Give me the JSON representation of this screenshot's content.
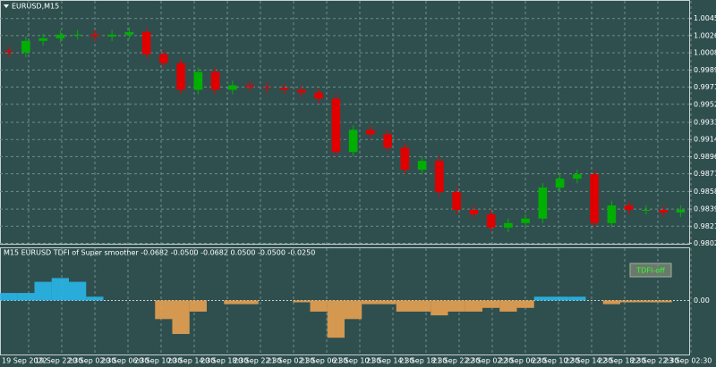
{
  "chart_data": [
    {
      "type": "candlestick",
      "title": "EURUSD,M15",
      "up_color": "#00b000",
      "down_color": "#e00000",
      "open": [
        1.001,
        1.00084,
        1.00208,
        1.00237,
        1.00276,
        1.00276,
        1.00256,
        1.00276,
        1.00304,
        1.00065,
        0.99969,
        0.99681,
        0.99873,
        0.99681,
        0.99729,
        0.9971,
        0.997,
        0.99681,
        0.99652,
        0.99585,
        0.9901,
        0.99249,
        0.99202,
        0.99058,
        0.98818,
        0.98914,
        0.98578,
        0.98386,
        0.98338,
        0.98195,
        0.98243,
        0.98291,
        0.98626,
        0.98722,
        0.9877,
        0.98243,
        0.98434,
        0.98386,
        0.98386,
        0.98358
      ],
      "high": [
        1.0015,
        1.00258,
        1.00287,
        1.00326,
        1.00326,
        1.00326,
        1.00326,
        1.00354,
        1.00354,
        1.00115,
        1.00019,
        0.99923,
        0.99923,
        0.99779,
        0.99779,
        0.9976,
        0.9975,
        0.99731,
        0.99702,
        0.99635,
        0.99299,
        0.99299,
        0.99252,
        0.99108,
        0.98964,
        0.98964,
        0.98628,
        0.98436,
        0.98388,
        0.98293,
        0.98341,
        0.98676,
        0.98772,
        0.9882,
        0.9882,
        0.98484,
        0.98484,
        0.98436,
        0.98436,
        0.98436
      ],
      "low": [
        1.00034,
        1.00034,
        1.00158,
        1.00187,
        1.00226,
        1.00206,
        1.00206,
        1.00226,
        1.00015,
        0.99919,
        0.99631,
        0.99631,
        0.99631,
        0.99631,
        0.9966,
        0.9965,
        0.99631,
        0.99602,
        0.99535,
        0.9896,
        0.9896,
        0.99152,
        0.99008,
        0.98768,
        0.98768,
        0.98528,
        0.98336,
        0.98288,
        0.98145,
        0.98145,
        0.98193,
        0.98241,
        0.98576,
        0.98672,
        0.98193,
        0.98193,
        0.98336,
        0.98336,
        0.98308,
        0.98308
      ],
      "close": [
        1.00084,
        1.00208,
        1.00237,
        1.00276,
        1.00276,
        1.00256,
        1.00276,
        1.00304,
        1.00065,
        0.99969,
        0.99681,
        0.99873,
        0.99681,
        0.99729,
        0.9971,
        0.997,
        0.99681,
        0.99652,
        0.99585,
        0.9901,
        0.99249,
        0.99202,
        0.99058,
        0.98818,
        0.98914,
        0.98578,
        0.98386,
        0.98338,
        0.98195,
        0.98243,
        0.98291,
        0.98626,
        0.98722,
        0.9877,
        0.98243,
        0.98434,
        0.98386,
        0.98386,
        0.98358,
        0.98386
      ],
      "ylim": [
        0.9802,
        1.0064
      ],
      "yticks": [
        {
          "value": 1.0045,
          "label": "1.00450"
        },
        {
          "value": 1.00265,
          "label": "1.00265"
        },
        {
          "value": 1.0008,
          "label": "1.00080"
        },
        {
          "value": 0.99895,
          "label": "0.99895"
        },
        {
          "value": 0.9971,
          "label": "0.99710"
        },
        {
          "value": 0.99525,
          "label": "0.99525"
        },
        {
          "value": 0.9933,
          "label": "0.99330"
        },
        {
          "value": 0.99145,
          "label": "0.99145"
        },
        {
          "value": 0.9896,
          "label": "0.98960"
        },
        {
          "value": 0.98775,
          "label": "0.98775"
        },
        {
          "value": 0.98585,
          "label": "0.98585"
        },
        {
          "value": 0.98395,
          "label": "0.98395"
        },
        {
          "value": 0.9821,
          "label": "0.98210"
        },
        {
          "value": 0.98025,
          "label": "0.98025"
        }
      ]
    },
    {
      "type": "bar",
      "title": "M15 EURUSD TDFI of Super smoother -0.0682 -0.0500 -0.0682 0.0500 -0.0500 -0.0250",
      "button": "TDFI-off",
      "positive_color": "#29b6e8",
      "negative_color": "#e8a050",
      "values": [
        0.02,
        0.02,
        0.05,
        0.06,
        0.05,
        0.01,
        0,
        0,
        0,
        -0.05,
        -0.09,
        -0.03,
        0,
        -0.01,
        -0.01,
        0,
        0,
        -0.005,
        -0.03,
        -0.1,
        -0.05,
        -0.01,
        -0.01,
        -0.03,
        -0.03,
        -0.04,
        -0.03,
        -0.03,
        -0.02,
        -0.03,
        -0.02,
        0.01,
        0.01,
        0.01,
        0,
        -0.01,
        -0.005,
        -0.005,
        -0.005,
        0
      ],
      "ylim": [
        -0.145,
        0.14
      ],
      "yticks": [
        {
          "value": 0,
          "label": "0.00"
        }
      ]
    }
  ],
  "time_labels": [
    "19 Sep 2022",
    "19 Sep 22:30",
    "20 Sep 02:30",
    "20 Sep 06:30",
    "20 Sep 10:30",
    "20 Sep 14:30",
    "20 Sep 18:30",
    "20 Sep 22:30",
    "21 Sep 02:30",
    "21 Sep 06:30",
    "21 Sep 10:30",
    "21 Sep 14:30",
    "21 Sep 18:30",
    "21 Sep 22:30",
    "22 Sep 02:30",
    "22 Sep 06:30",
    "22 Sep 10:30",
    "22 Sep 14:30",
    "22 Sep 18:30",
    "22 Sep 22:30",
    "23 Sep 02:30"
  ]
}
